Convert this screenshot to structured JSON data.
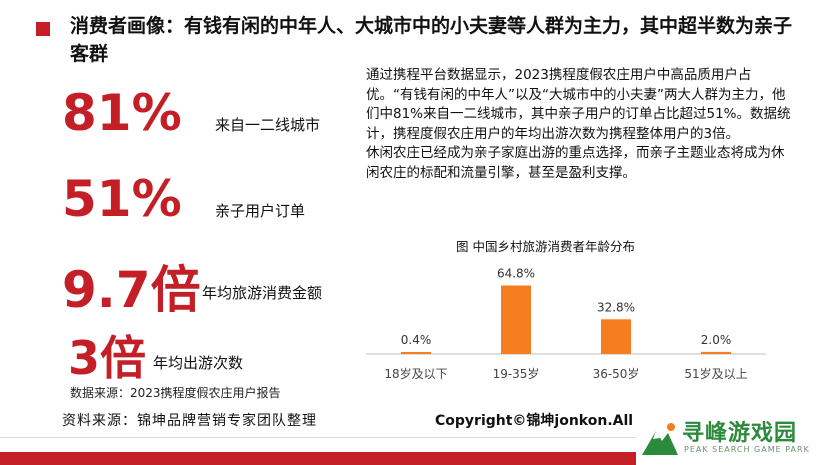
{
  "title": "消费者画像：有钱有闲的中年人、大城市中的小夫妻等人群为主力，其中超半数为亲子客群",
  "stats": [
    {
      "value": "81%",
      "label": "来自一二线城市"
    },
    {
      "value": "51%",
      "label": "亲子用户订单"
    },
    {
      "value": "9.7倍",
      "label": "年均旅游消费金额"
    },
    {
      "value": "3倍",
      "label": "年均出游次数"
    }
  ],
  "data_source": "数据来源：2023携程度假农庄用户报告",
  "source_note": "资料来源：锦坤品牌营销专家团队整理",
  "copyright": "Copyright©锦坤jonkon.All ri",
  "paragraphs": [
    "通过携程平台数据显示，2023携程度假农庄用户中高品质用户占优。“有钱有闲的中年人”以及“大城市中的小夫妻”两大人群为主力，他们中81%来自一二线城市，其中亲子用户的订单占比超过51%。数据统计，携程度假农庄用户的年均出游次数为携程整体用户的3倍。",
    "休闲农庄已经成为亲子家庭出游的重点选择，而亲子主题业态将成为休闲农庄的标配和流量引擎，甚至是盈利支撑。"
  ],
  "chart_data": {
    "type": "bar",
    "title": "图 中国乡村旅游消费者年龄分布",
    "categories": [
      "18岁及以下",
      "19-35岁",
      "36-50岁",
      "51岁及以上"
    ],
    "values": [
      0.4,
      64.8,
      32.8,
      2.0
    ],
    "value_labels": [
      "0.4%",
      "64.8%",
      "32.8%",
      "2.0%"
    ],
    "ylim": [
      0,
      70
    ],
    "grid": false,
    "legend": "none"
  },
  "logo": {
    "text": "寻峰游戏园",
    "sub": "PEAK SEARCH GAME PARK",
    "icon": "mountain-logo-icon"
  },
  "colors": {
    "accent": "#c41f26",
    "bar": "#f57c1f",
    "logo_green": "#2c8a3c"
  }
}
